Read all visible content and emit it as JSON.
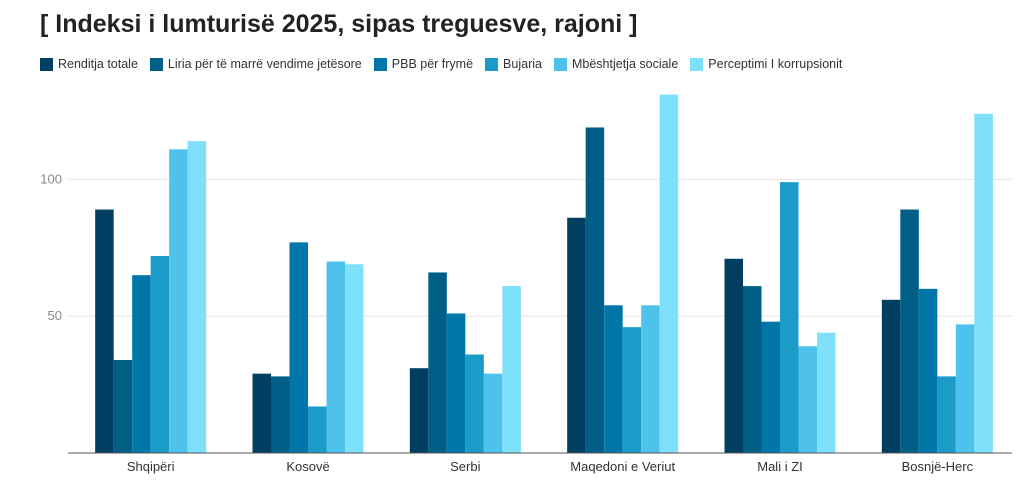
{
  "chart_data": {
    "type": "bar",
    "title": "[ Indeksi i lumturisë 2025, sipas treguesve, rajoni ]",
    "xlabel": "",
    "ylabel": "",
    "ylim": [
      0,
      140
    ],
    "yticks": [
      50,
      100
    ],
    "grid": true,
    "legend_position": "top-left",
    "categories": [
      "Shqipëri",
      "Kosovë",
      "Serbi",
      "Maqedoni e Veriut",
      "Mali i ZI",
      "Bosnjë-Herc"
    ],
    "series": [
      {
        "name": "Renditja totale",
        "color": "#003f62",
        "values": [
          89,
          29,
          31,
          86,
          71,
          56
        ]
      },
      {
        "name": "Liria për të marrë vendime jetësore",
        "color": "#005f86",
        "values": [
          34,
          28,
          66,
          119,
          61,
          89
        ]
      },
      {
        "name": "PBB për frymë",
        "color": "#0077a8",
        "values": [
          65,
          77,
          51,
          54,
          48,
          60
        ]
      },
      {
        "name": "Bujaria",
        "color": "#1a9bc8",
        "values": [
          72,
          17,
          36,
          46,
          99,
          28
        ]
      },
      {
        "name": "Mbështjetja sociale",
        "color": "#4ec2ea",
        "values": [
          111,
          70,
          29,
          54,
          39,
          47
        ]
      },
      {
        "name": "Perceptimi I korrupsionit",
        "color": "#7fe0fb",
        "values": [
          114,
          69,
          61,
          131,
          44,
          124
        ]
      }
    ]
  }
}
